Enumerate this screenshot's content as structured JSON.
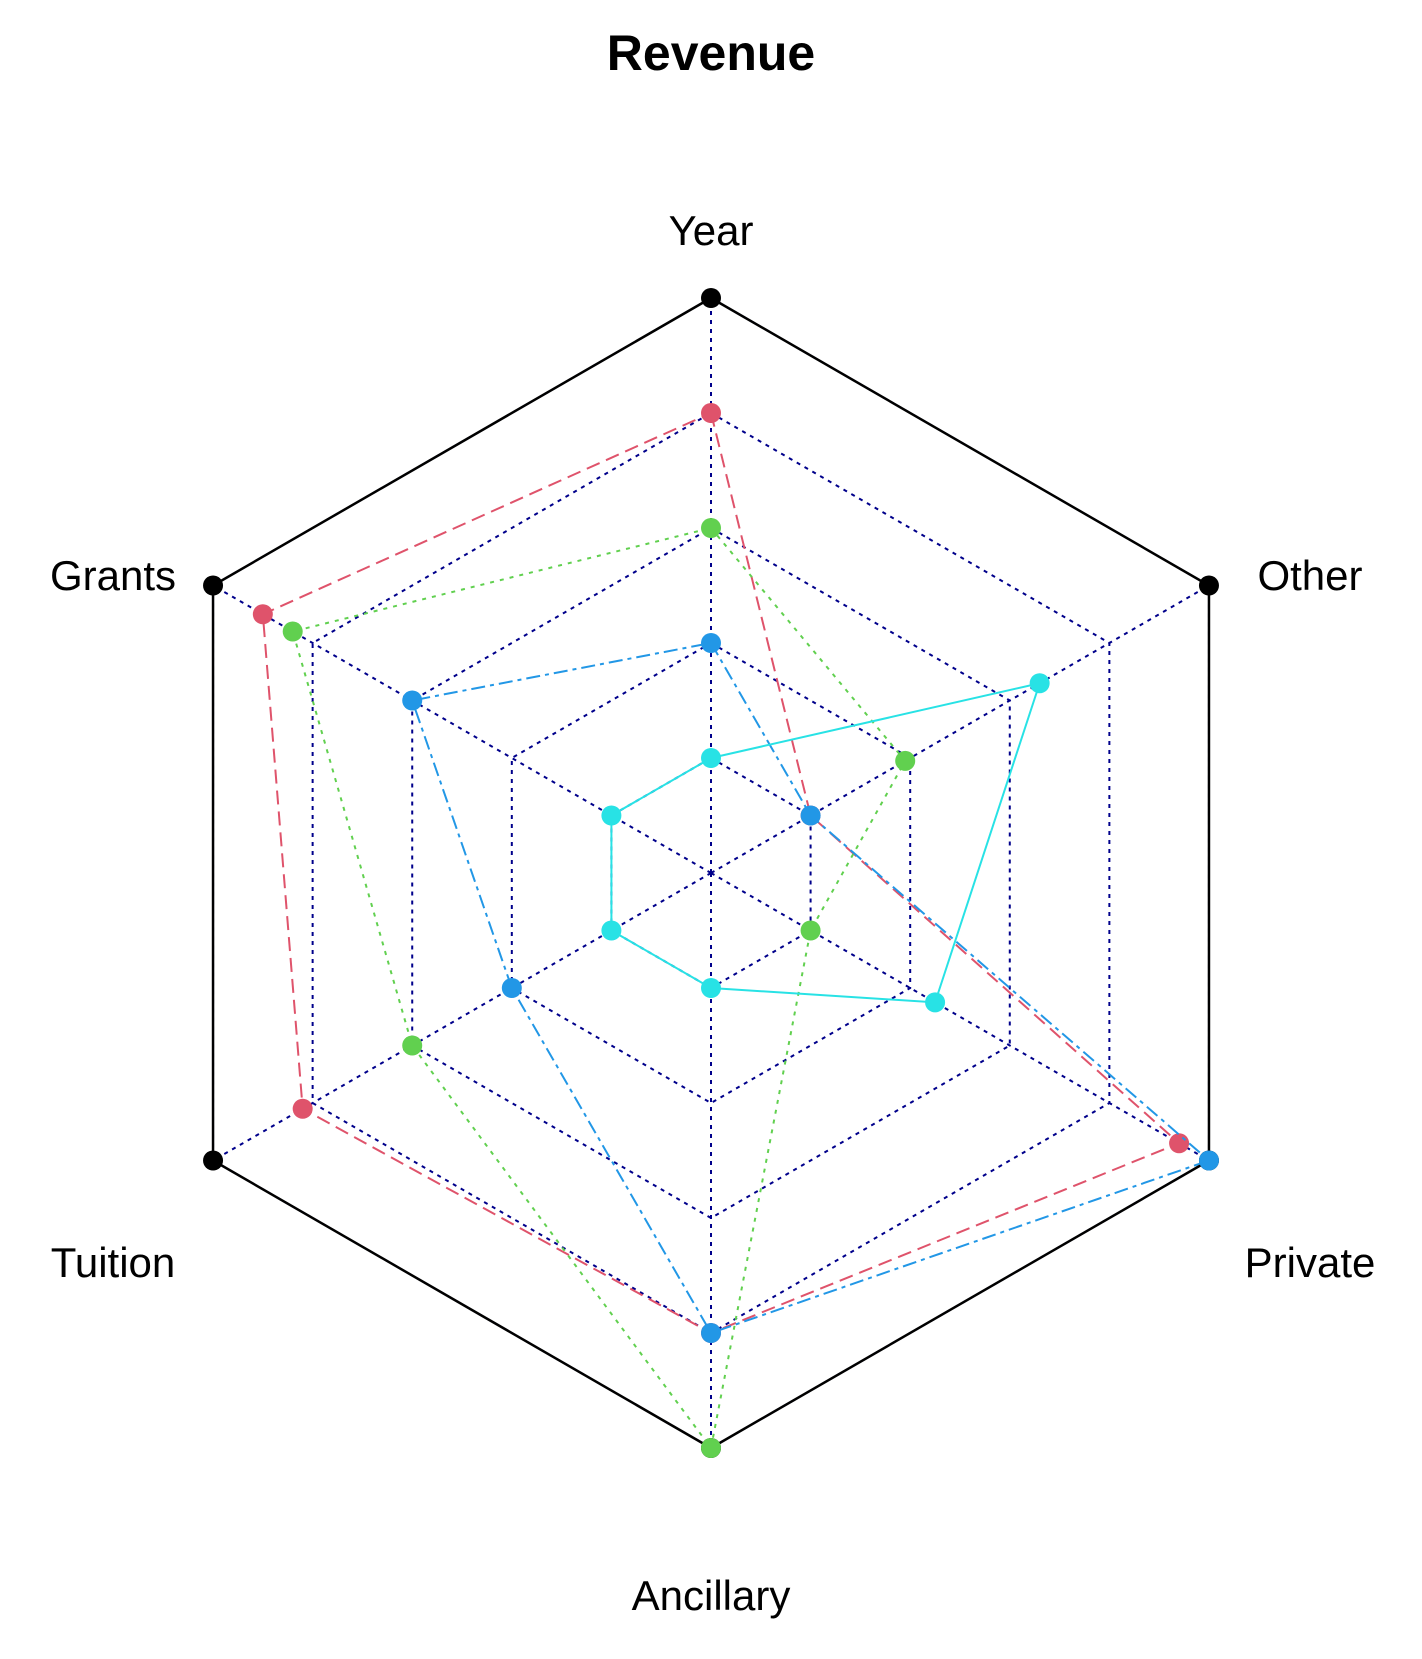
{
  "chart_data": {
    "type": "radar",
    "title": "Revenue",
    "axes": [
      "Year",
      "Other",
      "Private",
      "Ancillary",
      "Tuition",
      "Grants"
    ],
    "range": [
      0,
      1
    ],
    "grid_levels": 5,
    "legend": "none",
    "colors": {
      "grid": "#00008b",
      "max_frame": "#000000"
    },
    "series": [
      {
        "values": [
          1.0,
          1.0,
          1.0,
          1.0,
          1.0,
          1.0
        ],
        "color": "#000000",
        "line": "solid"
      },
      {
        "values": [
          0.8,
          0.2,
          0.94,
          0.8,
          0.82,
          0.9
        ],
        "color": "#df536b",
        "line": "dashed"
      },
      {
        "values": [
          0.6,
          0.39,
          0.2,
          1.0,
          0.6,
          0.84
        ],
        "color": "#61d04f",
        "line": "dotted"
      },
      {
        "values": [
          0.4,
          0.2,
          1.0,
          0.8,
          0.4,
          0.6
        ],
        "color": "#2297e6",
        "line": "dashdot"
      },
      {
        "values": [
          0.2,
          0.66,
          0.45,
          0.2,
          0.2,
          0.2
        ],
        "color": "#28e2e5",
        "line": "solid"
      }
    ]
  }
}
